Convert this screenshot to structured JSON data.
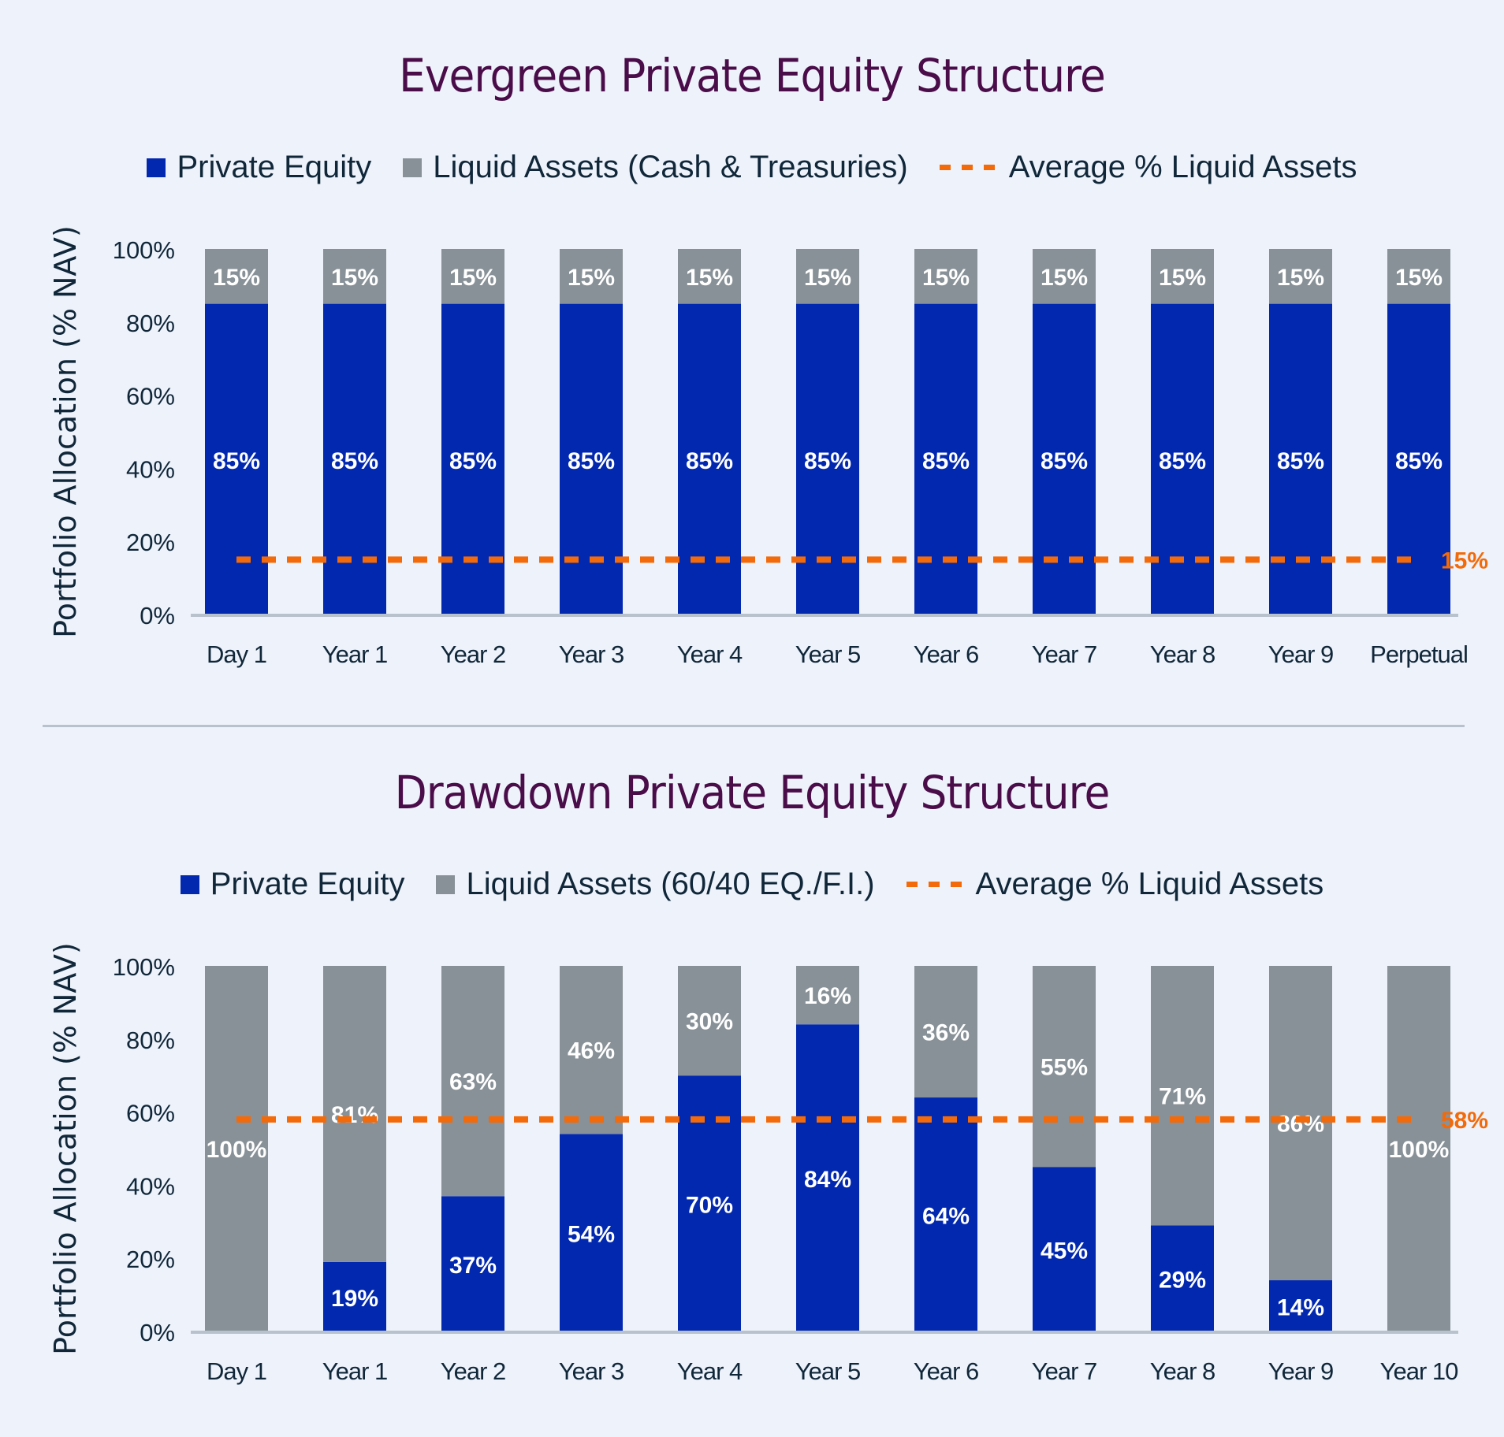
{
  "colors": {
    "private_equity": "#0228b0",
    "liquid": "#889197",
    "average": "#f26a0a",
    "axis": "#b8c2cc",
    "title": "#4a0d4a",
    "text": "#10273a"
  },
  "chart_data": [
    {
      "type": "bar",
      "stacked": true,
      "title": "Evergreen Private Equity Structure",
      "ylabel": "Portfolio Allocation (% NAV)",
      "xlabel": "",
      "ylim": [
        0,
        100
      ],
      "yticks": [
        "0%",
        "20%",
        "40%",
        "60%",
        "80%",
        "100%"
      ],
      "legend_position": "top",
      "categories": [
        "Day 1",
        "Year 1",
        "Year 2",
        "Year 3",
        "Year 4",
        "Year 5",
        "Year 6",
        "Year 7",
        "Year 8",
        "Year 9",
        "Perpetual"
      ],
      "series": [
        {
          "name": "Private Equity",
          "values": [
            85,
            85,
            85,
            85,
            85,
            85,
            85,
            85,
            85,
            85,
            85
          ]
        },
        {
          "name": "Liquid Assets (Cash & Treasuries)",
          "values": [
            15,
            15,
            15,
            15,
            15,
            15,
            15,
            15,
            15,
            15,
            15
          ]
        }
      ],
      "average_line": {
        "name": "Average % Liquid Assets",
        "value": 15,
        "label": "15%"
      },
      "legend": [
        "Private Equity",
        "Liquid Assets (Cash & Treasuries)",
        "Average % Liquid Assets"
      ]
    },
    {
      "type": "bar",
      "stacked": true,
      "title": "Drawdown Private Equity Structure",
      "ylabel": "Portfolio Allocation (% NAV)",
      "xlabel": "",
      "ylim": [
        0,
        100
      ],
      "yticks": [
        "0%",
        "20%",
        "40%",
        "60%",
        "80%",
        "100%"
      ],
      "legend_position": "top",
      "categories": [
        "Day 1",
        "Year 1",
        "Year 2",
        "Year 3",
        "Year 4",
        "Year 5",
        "Year 6",
        "Year 7",
        "Year 8",
        "Year 9",
        "Year 10"
      ],
      "series": [
        {
          "name": "Private Equity",
          "values": [
            0,
            19,
            37,
            54,
            70,
            84,
            64,
            45,
            29,
            14,
            0
          ]
        },
        {
          "name": "Liquid Assets (60/40 EQ./F.I.)",
          "values": [
            100,
            81,
            63,
            46,
            30,
            16,
            36,
            55,
            71,
            86,
            100
          ]
        }
      ],
      "average_line": {
        "name": "Average % Liquid Assets",
        "value": 58,
        "label": "58%"
      },
      "legend": [
        "Private Equity",
        "Liquid Assets (60/40 EQ./F.I.)",
        "Average % Liquid Assets"
      ]
    }
  ]
}
